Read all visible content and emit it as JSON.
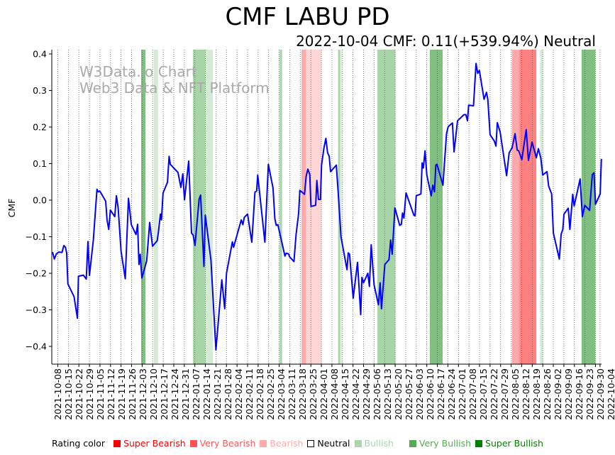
{
  "chart_data": {
    "type": "line",
    "title": "CMF LABU PD",
    "subtitle": "2022-10-04 CMF: 0.11(+539.94%) Neutral",
    "ylabel": "CMF",
    "xlabel": "",
    "ylim": [
      -0.45,
      0.41
    ],
    "x_unit": "days since 2021-10-04",
    "xlim": [
      0,
      365
    ],
    "y_ticks": [
      0.4,
      0.3,
      0.2,
      0.1,
      0.0,
      -0.1,
      -0.2,
      -0.3,
      -0.4
    ],
    "y_tick_labels": [
      "0.4",
      "0.3",
      "0.2",
      "0.1",
      "0.0",
      "−0.1",
      "−0.2",
      "−0.3",
      "−0.4"
    ],
    "x_tick_days_start": 4,
    "x_tick_labels": [
      "2021-10-08",
      "2021-10-15",
      "2021-10-22",
      "2021-10-29",
      "2021-11-05",
      "2021-11-12",
      "2021-11-19",
      "2021-11-26",
      "2021-12-03",
      "2021-12-10",
      "2021-12-17",
      "2021-12-24",
      "2021-12-31",
      "2022-01-07",
      "2022-01-14",
      "2022-01-21",
      "2022-01-28",
      "2022-02-04",
      "2022-02-11",
      "2022-02-18",
      "2022-02-25",
      "2022-03-04",
      "2022-03-11",
      "2022-03-18",
      "2022-03-25",
      "2022-04-01",
      "2022-04-08",
      "2022-04-15",
      "2022-04-22",
      "2022-04-29",
      "2022-05-06",
      "2022-05-13",
      "2022-05-20",
      "2022-05-27",
      "2022-06-03",
      "2022-06-10",
      "2022-06-17",
      "2022-06-24",
      "2022-07-01",
      "2022-07-08",
      "2022-07-15",
      "2022-07-22",
      "2022-07-29",
      "2022-08-05",
      "2022-08-12",
      "2022-08-19",
      "2022-08-26",
      "2022-09-02",
      "2022-09-09",
      "2022-09-16",
      "2022-09-23",
      "2022-09-30",
      "2022-10-04"
    ],
    "grid": "vertical dotted",
    "watermark": [
      "W3Data.io Chart",
      "Web3 Data & NFT Platform"
    ],
    "series": [
      {
        "name": "CMF",
        "color": "#0000ff",
        "points": [
          [
            0.5,
            -0.142
          ],
          [
            1.7,
            -0.161
          ],
          [
            3.0,
            -0.147
          ],
          [
            4.6,
            -0.142
          ],
          [
            6.8,
            -0.143
          ],
          [
            8.0,
            -0.124
          ],
          [
            9.1,
            -0.129
          ],
          [
            9.9,
            -0.145
          ],
          [
            10.7,
            -0.229
          ],
          [
            14.8,
            -0.264
          ],
          [
            17.0,
            -0.323
          ],
          [
            17.7,
            -0.208
          ],
          [
            21.0,
            -0.205
          ],
          [
            22.9,
            -0.216
          ],
          [
            24.0,
            -0.113
          ],
          [
            25.0,
            -0.206
          ],
          [
            27.6,
            -0.109
          ],
          [
            30.0,
            0.03
          ],
          [
            30.8,
            0.023
          ],
          [
            31.9,
            0.025
          ],
          [
            35.8,
            -0.003
          ],
          [
            36.7,
            -0.054
          ],
          [
            37.8,
            -0.08
          ],
          [
            38.9,
            -0.027
          ],
          [
            41.8,
            -0.045
          ],
          [
            42.9,
            0.012
          ],
          [
            44.1,
            -0.022
          ],
          [
            46.0,
            -0.14
          ],
          [
            48.8,
            -0.215
          ],
          [
            50.9,
            0.005
          ],
          [
            52.8,
            -0.067
          ],
          [
            55.9,
            -0.094
          ],
          [
            57.0,
            -0.066
          ],
          [
            57.9,
            -0.176
          ],
          [
            58.7,
            -0.148
          ],
          [
            59.8,
            -0.213
          ],
          [
            63.0,
            -0.166
          ],
          [
            65.0,
            -0.061
          ],
          [
            66.9,
            -0.126
          ],
          [
            70.0,
            -0.111
          ],
          [
            70.8,
            -0.088
          ],
          [
            72.1,
            -0.038
          ],
          [
            72.8,
            -0.054
          ],
          [
            73.9,
            0.02
          ],
          [
            76.8,
            0.049
          ],
          [
            77.9,
            0.12
          ],
          [
            78.7,
            0.098
          ],
          [
            83.8,
            0.076
          ],
          [
            85.7,
            0.035
          ],
          [
            87.0,
            0.072
          ],
          [
            88.1,
            0.001
          ],
          [
            90.9,
            0.107
          ],
          [
            92.8,
            -0.09
          ],
          [
            93.9,
            -0.096
          ],
          [
            95.1,
            -0.124
          ],
          [
            97.8,
            0.003
          ],
          [
            98.8,
            0.014
          ],
          [
            101.0,
            -0.181
          ],
          [
            101.9,
            -0.041
          ],
          [
            105.7,
            -0.164
          ],
          [
            109.0,
            -0.41
          ],
          [
            112.9,
            -0.218
          ],
          [
            114.8,
            -0.297
          ],
          [
            116.0,
            -0.2
          ],
          [
            119.9,
            -0.114
          ],
          [
            120.7,
            -0.129
          ],
          [
            125.8,
            -0.054
          ],
          [
            126.9,
            -0.067
          ],
          [
            127.8,
            -0.047
          ],
          [
            130.0,
            -0.038
          ],
          [
            132.8,
            -0.115
          ],
          [
            134.9,
            0.022
          ],
          [
            136.0,
            0.025
          ],
          [
            136.7,
            0.069
          ],
          [
            141.5,
            -0.115
          ],
          [
            143.8,
            0.098
          ],
          [
            146.9,
            0.033
          ],
          [
            148.1,
            -0.051
          ],
          [
            149.0,
            -0.069
          ],
          [
            150.1,
            -0.067
          ],
          [
            154.8,
            -0.153
          ],
          [
            155.6,
            -0.145
          ],
          [
            157.2,
            -0.147
          ],
          [
            157.9,
            -0.155
          ],
          [
            160.8,
            -0.168
          ],
          [
            162.2,
            -0.094
          ],
          [
            163.9,
            -0.036
          ],
          [
            164.7,
            0.027
          ],
          [
            167.8,
            0.016
          ],
          [
            168.9,
            0.065
          ],
          [
            170.0,
            0.085
          ],
          [
            171.3,
            0.07
          ],
          [
            172.1,
            -0.017
          ],
          [
            175.2,
            -0.014
          ],
          [
            176.0,
            0.054
          ],
          [
            177.1,
            0.002
          ],
          [
            178.4,
            0.002
          ],
          [
            179.1,
            0.096
          ],
          [
            180.7,
            0.143
          ],
          [
            182.0,
            0.169
          ],
          [
            183.1,
            0.13
          ],
          [
            184.2,
            0.12
          ],
          [
            185.1,
            0.078
          ],
          [
            188.9,
            0.096
          ],
          [
            190.2,
            0.02
          ],
          [
            192.0,
            -0.1
          ],
          [
            196.0,
            -0.19
          ],
          [
            196.8,
            -0.144
          ],
          [
            197.7,
            -0.148
          ],
          [
            200.1,
            -0.268
          ],
          [
            203.0,
            -0.17
          ],
          [
            205.1,
            -0.313
          ],
          [
            205.9,
            -0.211
          ],
          [
            207.0,
            -0.226
          ],
          [
            209.8,
            -0.2
          ],
          [
            210.9,
            -0.236
          ],
          [
            212.1,
            -0.122
          ],
          [
            214.0,
            -0.232
          ],
          [
            216.9,
            -0.286
          ],
          [
            218.0,
            -0.226
          ],
          [
            218.9,
            -0.297
          ],
          [
            221.1,
            -0.176
          ],
          [
            223.9,
            -0.163
          ],
          [
            225.0,
            -0.109
          ],
          [
            226.0,
            -0.148
          ],
          [
            227.8,
            -0.021
          ],
          [
            231.0,
            -0.069
          ],
          [
            232.1,
            -0.066
          ],
          [
            232.9,
            -0.035
          ],
          [
            233.8,
            -0.049
          ],
          [
            235.2,
            0.02
          ],
          [
            240.4,
            -0.041
          ],
          [
            241.2,
            -0.043
          ],
          [
            242.0,
            0.012
          ],
          [
            245.1,
            0.017
          ],
          [
            245.9,
            0.102
          ],
          [
            246.7,
            0.088
          ],
          [
            247.8,
            0.135
          ],
          [
            249.0,
            0.069
          ],
          [
            251.9,
            0.012
          ],
          [
            253.0,
            0.041
          ],
          [
            254.1,
            0.023
          ],
          [
            255.0,
            0.096
          ],
          [
            255.8,
            0.098
          ],
          [
            259.7,
            0.041
          ],
          [
            262.1,
            0.182
          ],
          [
            263.2,
            0.201
          ],
          [
            266.0,
            0.211
          ],
          [
            267.1,
            0.132
          ],
          [
            269.4,
            0.217
          ],
          [
            273.7,
            0.234
          ],
          [
            274.9,
            0.234
          ],
          [
            276.0,
            0.217
          ],
          [
            276.8,
            0.26
          ],
          [
            280.0,
            0.258
          ],
          [
            281.7,
            0.374
          ],
          [
            282.8,
            0.347
          ],
          [
            283.9,
            0.355
          ],
          [
            287.0,
            0.276
          ],
          [
            288.6,
            0.295
          ],
          [
            289.5,
            0.276
          ],
          [
            291.0,
            0.179
          ],
          [
            293.8,
            0.162
          ],
          [
            294.9,
            0.148
          ],
          [
            295.8,
            0.212
          ],
          [
            297.7,
            0.186
          ],
          [
            302.0,
            0.067
          ],
          [
            303.7,
            0.13
          ],
          [
            305.6,
            0.143
          ],
          [
            307.6,
            0.182
          ],
          [
            309.0,
            0.137
          ],
          [
            310.0,
            0.135
          ],
          [
            312.1,
            0.111
          ],
          [
            315.0,
            0.193
          ],
          [
            316.5,
            0.109
          ],
          [
            318.9,
            0.159
          ],
          [
            321.7,
            0.116
          ],
          [
            323.1,
            0.141
          ],
          [
            324.7,
            0.115
          ],
          [
            326.0,
            0.069
          ],
          [
            328.8,
            0.078
          ],
          [
            329.9,
            0.038
          ],
          [
            331.9,
            0.017
          ],
          [
            333.0,
            -0.09
          ],
          [
            337.0,
            -0.161
          ],
          [
            338.2,
            -0.093
          ],
          [
            339.3,
            -0.08
          ],
          [
            340.1,
            -0.038
          ],
          [
            342.9,
            -0.022
          ],
          [
            344.0,
            -0.08
          ],
          [
            345.9,
            0.016
          ],
          [
            346.8,
            -0.016
          ],
          [
            350.8,
            0.058
          ],
          [
            352.3,
            -0.045
          ],
          [
            353.9,
            -0.014
          ],
          [
            357.1,
            -0.028
          ],
          [
            358.9,
            0.07
          ],
          [
            360.0,
            0.075
          ],
          [
            361.0,
            -0.011
          ],
          [
            364.1,
            0.017
          ],
          [
            364.9,
            0.113
          ]
        ]
      }
    ],
    "bands": [
      {
        "from": 59.3,
        "to": 62.2,
        "rating": "Super Bullish",
        "color": "#7fbf7f"
      },
      {
        "from": 67.7,
        "to": 70.5,
        "rating": "Bullish",
        "color": "#d5ead5"
      },
      {
        "from": 93.7,
        "to": 101.9,
        "rating": "Very Bullish",
        "color": "#a8d5a8"
      },
      {
        "from": 101.9,
        "to": 106.9,
        "rating": "Bullish",
        "color": "#d5ead5"
      },
      {
        "from": 151.3,
        "to": 152.9,
        "rating": "Very Bullish",
        "color": "#a8d5a8"
      },
      {
        "from": 165.8,
        "to": 168.9,
        "rating": "Very Bearish",
        "color": "#ffaaaa"
      },
      {
        "from": 168.9,
        "to": 179.1,
        "rating": "Bearish",
        "color": "#ffd5d5"
      },
      {
        "from": 190.1,
        "to": 191.3,
        "rating": "Very Bullish",
        "color": "#a8d5a8"
      },
      {
        "from": 191.3,
        "to": 192.5,
        "rating": "Bullish",
        "color": "#d5ead5"
      },
      {
        "from": 216.2,
        "to": 228.1,
        "rating": "Very Bullish",
        "color": "#a8d5a8"
      },
      {
        "from": 251.0,
        "to": 259.5,
        "rating": "Super Bullish",
        "color": "#7fbf7f"
      },
      {
        "from": 305.5,
        "to": 310.5,
        "rating": "Very Bearish",
        "color": "#ffaaaa"
      },
      {
        "from": 310.5,
        "to": 321.7,
        "rating": "Super Bearish",
        "color": "#ff8080"
      },
      {
        "from": 324.4,
        "to": 326.1,
        "rating": "Bullish",
        "color": "#d5ead5"
      },
      {
        "from": 351.8,
        "to": 360.9,
        "rating": "Super Bullish",
        "color": "#7fbf7f"
      }
    ]
  },
  "legend": {
    "title": "Rating color",
    "items": [
      {
        "label": "Super Bearish",
        "color": "#ff0000"
      },
      {
        "label": "Very Bearish",
        "color": "#ff5555"
      },
      {
        "label": "Bearish",
        "color": "#ffaaaa"
      },
      {
        "label": "Neutral",
        "color": "#000000"
      },
      {
        "label": "Bullish",
        "color": "#aad5aa"
      },
      {
        "label": "Very Bullish",
        "color": "#55aa55"
      },
      {
        "label": "Super Bullish",
        "color": "#008000"
      }
    ]
  }
}
